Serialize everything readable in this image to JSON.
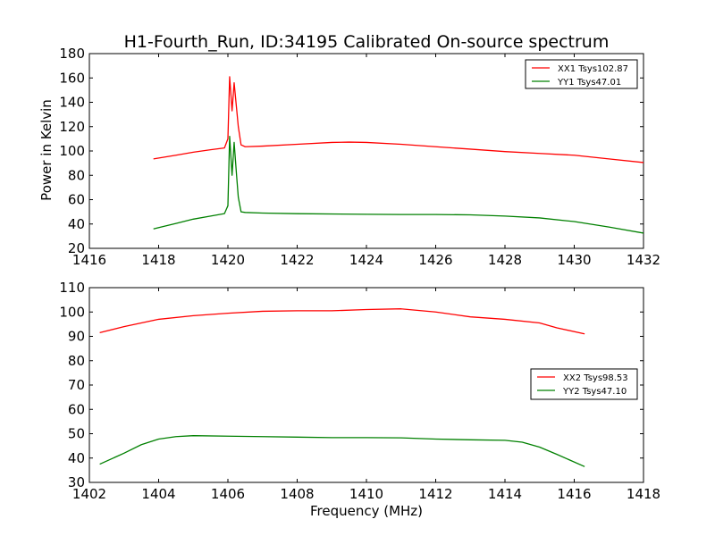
{
  "chart_data": [
    {
      "type": "line",
      "title": "H1-Fourth_Run, ID:34195 Calibrated On-source spectrum",
      "xlabel": "",
      "ylabel": "Power in Kelvin",
      "xlim": [
        1416,
        1432
      ],
      "ylim": [
        20,
        180
      ],
      "xticks": [
        "1416",
        "1418",
        "1420",
        "1422",
        "1424",
        "1426",
        "1428",
        "1430",
        "1432"
      ],
      "yticks": [
        "20",
        "40",
        "60",
        "80",
        "100",
        "120",
        "140",
        "160",
        "180"
      ],
      "legend_position": "top-right",
      "grid": false,
      "series": [
        {
          "name": "XX1 Tsys102.87",
          "color": "#ff0000",
          "points": [
            [
              1417.85,
              93.5
            ],
            [
              1418.5,
              96.5
            ],
            [
              1419.0,
              99.0
            ],
            [
              1419.5,
              101.0
            ],
            [
              1419.9,
              102.5
            ],
            [
              1420.0,
              110.0
            ],
            [
              1420.05,
              161.0
            ],
            [
              1420.12,
              133.0
            ],
            [
              1420.18,
              156.0
            ],
            [
              1420.25,
              135.0
            ],
            [
              1420.3,
              120.0
            ],
            [
              1420.38,
              105.0
            ],
            [
              1420.5,
              103.5
            ],
            [
              1421.0,
              104.0
            ],
            [
              1422.0,
              105.5
            ],
            [
              1423.0,
              107.0
            ],
            [
              1423.5,
              107.3
            ],
            [
              1424.0,
              107.0
            ],
            [
              1425.0,
              105.5
            ],
            [
              1426.0,
              103.5
            ],
            [
              1427.0,
              101.5
            ],
            [
              1428.0,
              99.5
            ],
            [
              1429.0,
              98.0
            ],
            [
              1430.0,
              96.5
            ],
            [
              1431.0,
              93.5
            ],
            [
              1432.0,
              90.5
            ]
          ]
        },
        {
          "name": "YY1 Tsys47.01",
          "color": "#008000",
          "points": [
            [
              1417.85,
              36.0
            ],
            [
              1418.5,
              40.5
            ],
            [
              1419.0,
              44.0
            ],
            [
              1419.5,
              46.5
            ],
            [
              1419.9,
              48.5
            ],
            [
              1420.0,
              55.0
            ],
            [
              1420.05,
              112.0
            ],
            [
              1420.12,
              80.0
            ],
            [
              1420.18,
              107.0
            ],
            [
              1420.25,
              80.0
            ],
            [
              1420.3,
              62.0
            ],
            [
              1420.38,
              50.0
            ],
            [
              1420.5,
              49.5
            ],
            [
              1421.0,
              49.0
            ],
            [
              1422.0,
              48.5
            ],
            [
              1424.0,
              48.0
            ],
            [
              1425.0,
              47.8
            ],
            [
              1426.0,
              47.8
            ],
            [
              1427.0,
              47.5
            ],
            [
              1428.0,
              46.5
            ],
            [
              1429.0,
              45.0
            ],
            [
              1430.0,
              42.0
            ],
            [
              1431.0,
              37.5
            ],
            [
              1432.0,
              32.5
            ]
          ]
        }
      ]
    },
    {
      "type": "line",
      "title": "",
      "xlabel": "Frequency (MHz)",
      "ylabel": "",
      "xlim": [
        1402,
        1418
      ],
      "ylim": [
        30,
        110
      ],
      "xticks": [
        "1402",
        "1404",
        "1406",
        "1408",
        "1410",
        "1412",
        "1414",
        "1416",
        "1418"
      ],
      "yticks": [
        "30",
        "40",
        "50",
        "60",
        "70",
        "80",
        "90",
        "100",
        "110"
      ],
      "legend_position": "center-right",
      "grid": false,
      "series": [
        {
          "name": "XX2 Tsys98.53",
          "color": "#ff0000",
          "points": [
            [
              1402.3,
              91.5
            ],
            [
              1403.0,
              94.0
            ],
            [
              1404.0,
              97.0
            ],
            [
              1405.0,
              98.5
            ],
            [
              1406.0,
              99.5
            ],
            [
              1407.0,
              100.3
            ],
            [
              1408.0,
              100.5
            ],
            [
              1409.0,
              100.5
            ],
            [
              1410.0,
              101.0
            ],
            [
              1411.0,
              101.3
            ],
            [
              1412.0,
              100.0
            ],
            [
              1413.0,
              98.0
            ],
            [
              1414.0,
              97.0
            ],
            [
              1415.0,
              95.5
            ],
            [
              1415.5,
              93.5
            ],
            [
              1416.3,
              91.0
            ]
          ]
        },
        {
          "name": "YY2 Tsys47.10",
          "color": "#008000",
          "points": [
            [
              1402.3,
              37.5
            ],
            [
              1403.0,
              42.0
            ],
            [
              1403.5,
              45.5
            ],
            [
              1404.0,
              47.8
            ],
            [
              1404.5,
              48.8
            ],
            [
              1405.0,
              49.2
            ],
            [
              1406.0,
              49.0
            ],
            [
              1407.0,
              48.8
            ],
            [
              1408.0,
              48.6
            ],
            [
              1409.0,
              48.4
            ],
            [
              1410.0,
              48.4
            ],
            [
              1411.0,
              48.3
            ],
            [
              1412.0,
              47.8
            ],
            [
              1413.0,
              47.5
            ],
            [
              1414.0,
              47.3
            ],
            [
              1414.5,
              46.5
            ],
            [
              1415.0,
              44.5
            ],
            [
              1415.5,
              41.5
            ],
            [
              1416.3,
              36.5
            ]
          ]
        }
      ]
    }
  ]
}
